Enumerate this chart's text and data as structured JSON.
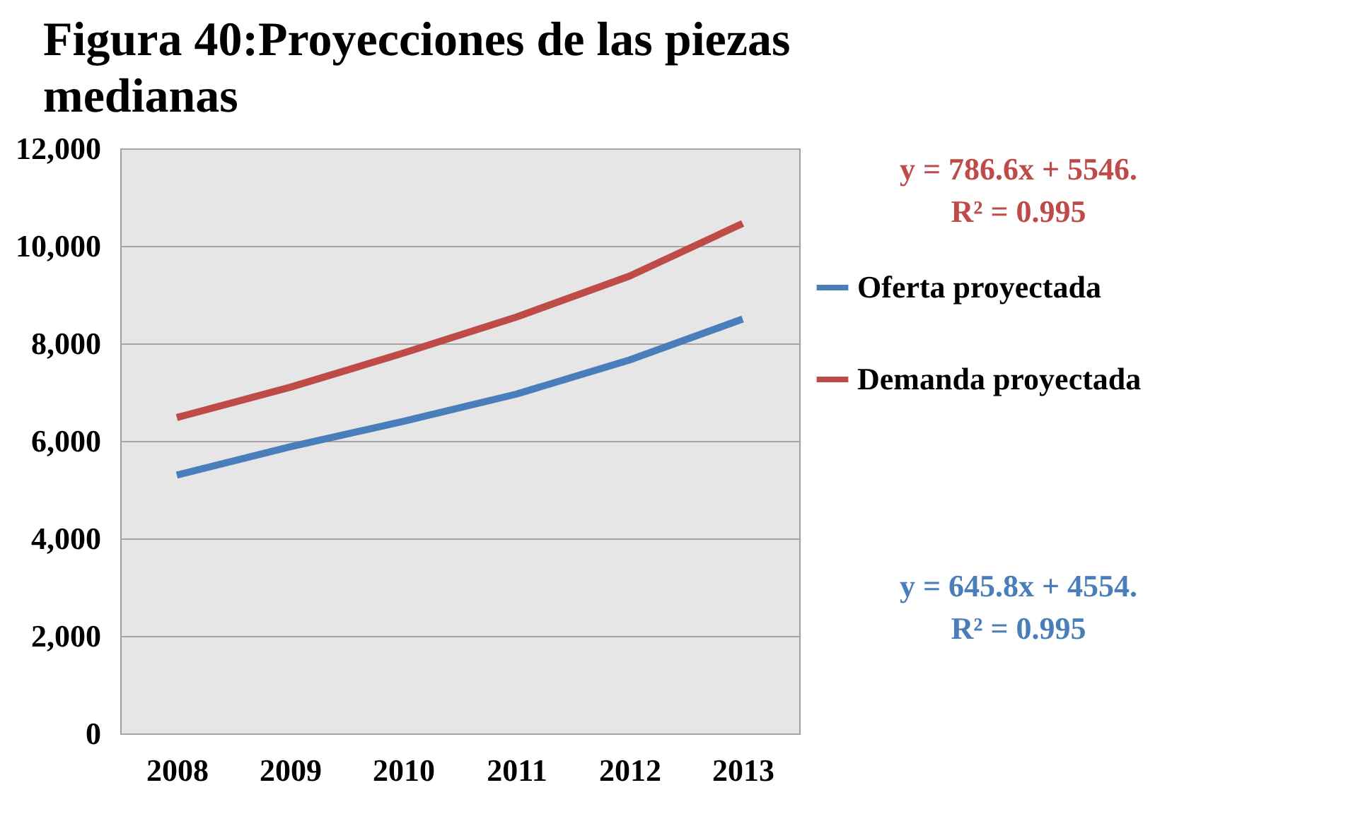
{
  "chart_data": {
    "type": "line",
    "title": "Figura 40:Proyecciones de las piezas medianas",
    "categories": [
      "2008",
      "2009",
      "2010",
      "2011",
      "2012",
      "2013"
    ],
    "series": [
      {
        "name": "Oferta proyectada",
        "color": "#4a7ebb",
        "values": [
          5300,
          5880,
          6400,
          6960,
          7660,
          8500
        ]
      },
      {
        "name": "Demanda proyectada",
        "color": "#be4b48",
        "values": [
          6480,
          7100,
          7800,
          8540,
          9380,
          10460
        ]
      }
    ],
    "ylim": [
      0,
      12000
    ],
    "yticks": [
      0,
      {
        "value": 2000,
        "label": "2,000"
      },
      {
        "value": 4000,
        "label": "4,000"
      },
      {
        "value": 6000,
        "label": "6,000"
      },
      {
        "value": 8000,
        "label": "8,000"
      },
      {
        "value": 10000,
        "label": "10,000"
      },
      {
        "value": 12000,
        "label": "12,000"
      }
    ],
    "grid": "y",
    "legend": "right",
    "marker": "none",
    "line_style": "solid",
    "annotations": [
      "y = 786.6x + 5546.\nR² = 0.995",
      "y = 645.8x + 4554.\nR² = 0.995"
    ]
  }
}
